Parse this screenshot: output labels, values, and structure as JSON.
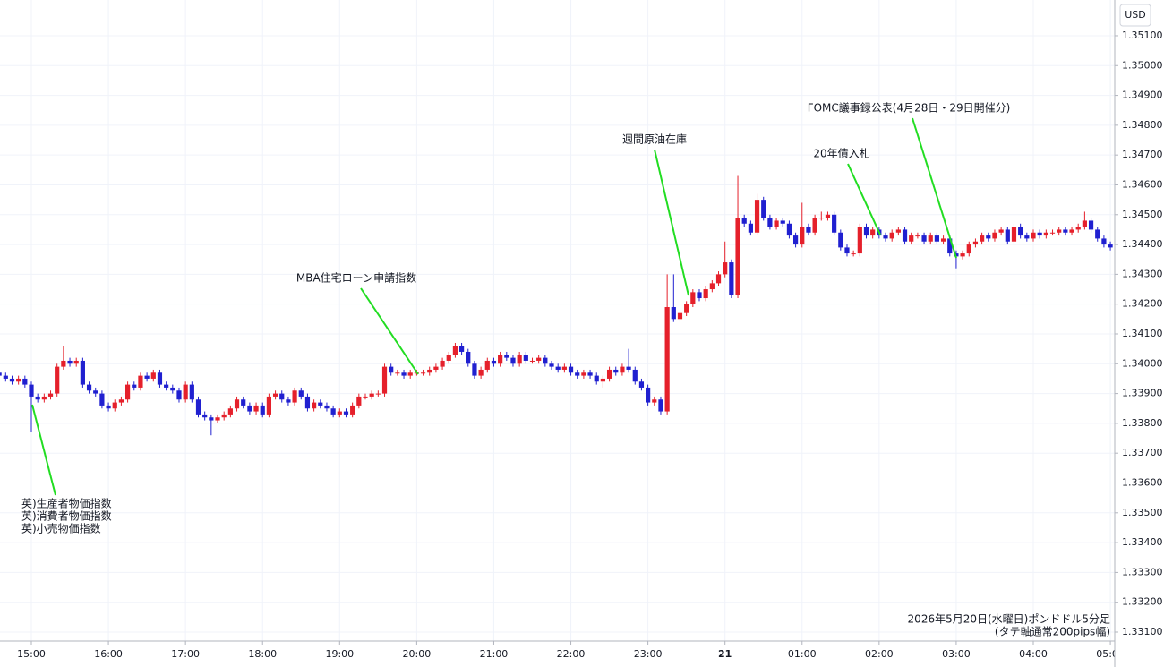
{
  "chart_data": {
    "type": "candlestick",
    "currency": "USD",
    "up_color": "#e5202b",
    "down_color": "#2020d0",
    "grid": true,
    "ylim": [
      1.3307,
      1.3522
    ],
    "yticks": [
      {
        "value": 1.331,
        "label": "1.33100"
      },
      {
        "value": 1.332,
        "label": "1.33200"
      },
      {
        "value": 1.333,
        "label": "1.33300"
      },
      {
        "value": 1.334,
        "label": "1.33400"
      },
      {
        "value": 1.335,
        "label": "1.33500"
      },
      {
        "value": 1.336,
        "label": "1.33600"
      },
      {
        "value": 1.337,
        "label": "1.33700"
      },
      {
        "value": 1.338,
        "label": "1.33800"
      },
      {
        "value": 1.339,
        "label": "1.33900"
      },
      {
        "value": 1.34,
        "label": "1.34000"
      },
      {
        "value": 1.341,
        "label": "1.34100"
      },
      {
        "value": 1.342,
        "label": "1.34200"
      },
      {
        "value": 1.343,
        "label": "1.34300"
      },
      {
        "value": 1.344,
        "label": "1.34400"
      },
      {
        "value": 1.345,
        "label": "1.34500"
      },
      {
        "value": 1.346,
        "label": "1.34600"
      },
      {
        "value": 1.347,
        "label": "1.34700"
      },
      {
        "value": 1.348,
        "label": "1.34800"
      },
      {
        "value": 1.349,
        "label": "1.34900"
      },
      {
        "value": 1.35,
        "label": "1.35000"
      },
      {
        "value": 1.351,
        "label": "1.35100"
      }
    ],
    "xticks": [
      "15:00",
      "16:00",
      "17:00",
      "18:00",
      "19:00",
      "20:00",
      "21:00",
      "22:00",
      "23:00",
      {
        "value": "00:00",
        "label": "21"
      },
      "01:00",
      "02:00",
      "03:00",
      "04:00",
      "05:00"
    ],
    "x": [
      "14:35",
      "14:40",
      "14:45",
      "14:50",
      "14:55",
      "15:00",
      "15:05",
      "15:10",
      "15:15",
      "15:20",
      "15:25",
      "15:30",
      "15:35",
      "15:40",
      "15:45",
      "15:50",
      "15:55",
      "16:00",
      "16:05",
      "16:10",
      "16:15",
      "16:20",
      "16:25",
      "16:30",
      "16:35",
      "16:40",
      "16:45",
      "16:50",
      "16:55",
      "17:00",
      "17:05",
      "17:10",
      "17:15",
      "17:20",
      "17:25",
      "17:30",
      "17:35",
      "17:40",
      "17:45",
      "17:50",
      "17:55",
      "18:00",
      "18:05",
      "18:10",
      "18:15",
      "18:20",
      "18:25",
      "18:30",
      "18:35",
      "18:40",
      "18:45",
      "18:50",
      "18:55",
      "19:00",
      "19:05",
      "19:10",
      "19:15",
      "19:20",
      "19:25",
      "19:30",
      "19:35",
      "19:40",
      "19:45",
      "19:50",
      "19:55",
      "20:00",
      "20:05",
      "20:10",
      "20:15",
      "20:20",
      "20:25",
      "20:30",
      "20:35",
      "20:40",
      "20:45",
      "20:50",
      "20:55",
      "21:00",
      "21:05",
      "21:10",
      "21:15",
      "21:20",
      "21:25",
      "21:30",
      "21:35",
      "21:40",
      "21:45",
      "21:50",
      "21:55",
      "22:00",
      "22:05",
      "22:10",
      "22:15",
      "22:20",
      "22:25",
      "22:30",
      "22:35",
      "22:40",
      "22:45",
      "22:50",
      "22:55",
      "23:00",
      "23:05",
      "23:10",
      "23:15",
      "23:20",
      "23:25",
      "23:30",
      "23:35",
      "23:40",
      "23:45",
      "23:50",
      "23:55",
      "00:00",
      "00:05",
      "00:10",
      "00:15",
      "00:20",
      "00:25",
      "00:30",
      "00:35",
      "00:40",
      "00:45",
      "00:50",
      "00:55",
      "01:00",
      "01:05",
      "01:10",
      "01:15",
      "01:20",
      "01:25",
      "01:30",
      "01:35",
      "01:40",
      "01:45",
      "01:50",
      "01:55",
      "02:00",
      "02:05",
      "02:10",
      "02:15",
      "02:20",
      "02:25",
      "02:30",
      "02:35",
      "02:40",
      "02:45",
      "02:50",
      "02:55",
      "03:00",
      "03:05",
      "03:10",
      "03:15",
      "03:20",
      "03:25",
      "03:30",
      "03:35",
      "03:40",
      "03:45",
      "03:50",
      "03:55",
      "04:00",
      "04:05",
      "04:10",
      "04:15",
      "04:20",
      "04:25",
      "04:30",
      "04:35",
      "04:40",
      "04:45",
      "04:50",
      "04:55",
      "05:00"
    ],
    "ohlc": [
      [
        1.3397,
        1.3398,
        1.3395,
        1.3396
      ],
      [
        1.3396,
        1.3397,
        1.3394,
        1.3395
      ],
      [
        1.3395,
        1.3396,
        1.3393,
        1.3394
      ],
      [
        1.3394,
        1.3396,
        1.3393,
        1.3395
      ],
      [
        1.3395,
        1.3396,
        1.3392,
        1.3393
      ],
      [
        1.3393,
        1.3394,
        1.3377,
        1.3389
      ],
      [
        1.3389,
        1.339,
        1.3387,
        1.3388
      ],
      [
        1.3388,
        1.339,
        1.3387,
        1.3389
      ],
      [
        1.3389,
        1.3391,
        1.3388,
        1.339
      ],
      [
        1.339,
        1.34,
        1.3389,
        1.3399
      ],
      [
        1.3399,
        1.3406,
        1.3398,
        1.3401
      ],
      [
        1.3401,
        1.3402,
        1.3399,
        1.34
      ],
      [
        1.34,
        1.3402,
        1.3399,
        1.3401
      ],
      [
        1.3401,
        1.3402,
        1.3392,
        1.3393
      ],
      [
        1.3393,
        1.3394,
        1.339,
        1.3391
      ],
      [
        1.3391,
        1.3392,
        1.3389,
        1.339
      ],
      [
        1.339,
        1.3391,
        1.3385,
        1.3386
      ],
      [
        1.3386,
        1.3387,
        1.3384,
        1.3385
      ],
      [
        1.3385,
        1.3388,
        1.3384,
        1.3387
      ],
      [
        1.3387,
        1.3389,
        1.3386,
        1.3388
      ],
      [
        1.3388,
        1.3394,
        1.3387,
        1.3393
      ],
      [
        1.3393,
        1.3394,
        1.3391,
        1.3392
      ],
      [
        1.3392,
        1.3397,
        1.3391,
        1.3396
      ],
      [
        1.3396,
        1.3397,
        1.3394,
        1.3395
      ],
      [
        1.3395,
        1.3398,
        1.3394,
        1.3397
      ],
      [
        1.3397,
        1.3398,
        1.3392,
        1.3393
      ],
      [
        1.3393,
        1.3394,
        1.3391,
        1.3392
      ],
      [
        1.3392,
        1.3393,
        1.339,
        1.3391
      ],
      [
        1.3391,
        1.3392,
        1.3387,
        1.3388
      ],
      [
        1.3388,
        1.3394,
        1.3387,
        1.3393
      ],
      [
        1.3393,
        1.3394,
        1.3387,
        1.3388
      ],
      [
        1.3388,
        1.3389,
        1.3382,
        1.3383
      ],
      [
        1.3383,
        1.3384,
        1.3381,
        1.3382
      ],
      [
        1.3382,
        1.3383,
        1.3376,
        1.3381
      ],
      [
        1.3381,
        1.3383,
        1.338,
        1.3382
      ],
      [
        1.3382,
        1.3384,
        1.3381,
        1.3383
      ],
      [
        1.3383,
        1.3386,
        1.3382,
        1.3385
      ],
      [
        1.3385,
        1.3389,
        1.3384,
        1.3388
      ],
      [
        1.3388,
        1.3389,
        1.3385,
        1.3386
      ],
      [
        1.3386,
        1.3387,
        1.3383,
        1.3384
      ],
      [
        1.3384,
        1.3387,
        1.3383,
        1.3386
      ],
      [
        1.3386,
        1.3387,
        1.3382,
        1.3383
      ],
      [
        1.3383,
        1.339,
        1.3382,
        1.3389
      ],
      [
        1.3389,
        1.3391,
        1.3388,
        1.339
      ],
      [
        1.339,
        1.3391,
        1.3387,
        1.3388
      ],
      [
        1.3388,
        1.3389,
        1.3386,
        1.3387
      ],
      [
        1.3387,
        1.3392,
        1.3386,
        1.3391
      ],
      [
        1.3391,
        1.3392,
        1.3388,
        1.3389
      ],
      [
        1.3389,
        1.339,
        1.3384,
        1.3385
      ],
      [
        1.3385,
        1.3388,
        1.3384,
        1.3387
      ],
      [
        1.3387,
        1.3388,
        1.3385,
        1.3386
      ],
      [
        1.3386,
        1.3387,
        1.3384,
        1.3385
      ],
      [
        1.3385,
        1.3386,
        1.3382,
        1.3383
      ],
      [
        1.3383,
        1.3385,
        1.3382,
        1.3384
      ],
      [
        1.3384,
        1.3385,
        1.3382,
        1.3383
      ],
      [
        1.3383,
        1.3387,
        1.3382,
        1.3386
      ],
      [
        1.3386,
        1.339,
        1.3385,
        1.3389
      ],
      [
        1.3389,
        1.339,
        1.3388,
        1.3389
      ],
      [
        1.3389,
        1.3391,
        1.3388,
        1.339
      ],
      [
        1.339,
        1.3391,
        1.3389,
        1.339
      ],
      [
        1.339,
        1.34,
        1.3389,
        1.3399
      ],
      [
        1.3399,
        1.34,
        1.3396,
        1.3397
      ],
      [
        1.3397,
        1.3398,
        1.3396,
        1.3397
      ],
      [
        1.3397,
        1.3398,
        1.3395,
        1.3396
      ],
      [
        1.3396,
        1.3398,
        1.3395,
        1.3397
      ],
      [
        1.3397,
        1.3398,
        1.3396,
        1.3397
      ],
      [
        1.3397,
        1.3398,
        1.3396,
        1.3397
      ],
      [
        1.3397,
        1.3399,
        1.3396,
        1.3398
      ],
      [
        1.3398,
        1.34,
        1.3397,
        1.3399
      ],
      [
        1.3399,
        1.3402,
        1.3398,
        1.3401
      ],
      [
        1.3401,
        1.3404,
        1.34,
        1.3403
      ],
      [
        1.3403,
        1.3407,
        1.3402,
        1.3406
      ],
      [
        1.3406,
        1.3407,
        1.3403,
        1.3404
      ],
      [
        1.3404,
        1.3405,
        1.3399,
        1.34
      ],
      [
        1.34,
        1.3401,
        1.3395,
        1.3396
      ],
      [
        1.3396,
        1.3399,
        1.3395,
        1.3398
      ],
      [
        1.3398,
        1.3402,
        1.3397,
        1.3401
      ],
      [
        1.3401,
        1.3402,
        1.3399,
        1.34
      ],
      [
        1.34,
        1.3404,
        1.3399,
        1.3403
      ],
      [
        1.3403,
        1.3404,
        1.3401,
        1.3402
      ],
      [
        1.3402,
        1.3403,
        1.3399,
        1.34
      ],
      [
        1.34,
        1.3404,
        1.3399,
        1.3403
      ],
      [
        1.3403,
        1.3404,
        1.34,
        1.3401
      ],
      [
        1.3401,
        1.3402,
        1.34,
        1.3401
      ],
      [
        1.3401,
        1.3403,
        1.34,
        1.3402
      ],
      [
        1.3402,
        1.3403,
        1.3399,
        1.34
      ],
      [
        1.34,
        1.3401,
        1.3398,
        1.3399
      ],
      [
        1.3399,
        1.34,
        1.3397,
        1.3398
      ],
      [
        1.3398,
        1.34,
        1.3397,
        1.3399
      ],
      [
        1.3399,
        1.34,
        1.3396,
        1.3397
      ],
      [
        1.3397,
        1.3398,
        1.3395,
        1.3396
      ],
      [
        1.3396,
        1.3398,
        1.3395,
        1.3397
      ],
      [
        1.3397,
        1.3398,
        1.3395,
        1.3396
      ],
      [
        1.3396,
        1.3397,
        1.3393,
        1.3394
      ],
      [
        1.3394,
        1.3396,
        1.3392,
        1.3395
      ],
      [
        1.3395,
        1.3399,
        1.3394,
        1.3398
      ],
      [
        1.3398,
        1.3399,
        1.3396,
        1.3397
      ],
      [
        1.3397,
        1.34,
        1.3396,
        1.3399
      ],
      [
        1.3399,
        1.3405,
        1.3397,
        1.3398
      ],
      [
        1.3398,
        1.3399,
        1.3393,
        1.3394
      ],
      [
        1.3394,
        1.3395,
        1.3391,
        1.3392
      ],
      [
        1.3392,
        1.3393,
        1.3386,
        1.3387
      ],
      [
        1.3387,
        1.3389,
        1.3386,
        1.3388
      ],
      [
        1.3388,
        1.3389,
        1.3383,
        1.3384
      ],
      [
        1.3384,
        1.343,
        1.3383,
        1.3419
      ],
      [
        1.3419,
        1.343,
        1.3414,
        1.3415
      ],
      [
        1.3415,
        1.3418,
        1.3414,
        1.3417
      ],
      [
        1.3417,
        1.3421,
        1.3416,
        1.342
      ],
      [
        1.342,
        1.3425,
        1.3419,
        1.3424
      ],
      [
        1.3424,
        1.3425,
        1.3421,
        1.3422
      ],
      [
        1.3422,
        1.3426,
        1.3421,
        1.3425
      ],
      [
        1.3425,
        1.3428,
        1.3424,
        1.3427
      ],
      [
        1.3427,
        1.3431,
        1.3426,
        1.343
      ],
      [
        1.343,
        1.3441,
        1.3429,
        1.3434
      ],
      [
        1.3434,
        1.3435,
        1.3422,
        1.3423
      ],
      [
        1.3423,
        1.3463,
        1.3422,
        1.3449
      ],
      [
        1.3449,
        1.345,
        1.3446,
        1.3447
      ],
      [
        1.3447,
        1.3448,
        1.3443,
        1.3444
      ],
      [
        1.3444,
        1.3457,
        1.3443,
        1.3455
      ],
      [
        1.3455,
        1.3456,
        1.3448,
        1.3449
      ],
      [
        1.3449,
        1.345,
        1.3445,
        1.3446
      ],
      [
        1.3446,
        1.3449,
        1.3445,
        1.3448
      ],
      [
        1.3448,
        1.3449,
        1.3446,
        1.3447
      ],
      [
        1.3447,
        1.3448,
        1.3442,
        1.3443
      ],
      [
        1.3443,
        1.3444,
        1.3439,
        1.344
      ],
      [
        1.344,
        1.3454,
        1.3439,
        1.3446
      ],
      [
        1.3446,
        1.3447,
        1.3443,
        1.3444
      ],
      [
        1.3444,
        1.345,
        1.3443,
        1.3449
      ],
      [
        1.3449,
        1.3451,
        1.3448,
        1.3449
      ],
      [
        1.3449,
        1.3451,
        1.3448,
        1.345
      ],
      [
        1.345,
        1.3451,
        1.3443,
        1.3444
      ],
      [
        1.3444,
        1.3445,
        1.3438,
        1.3439
      ],
      [
        1.3439,
        1.344,
        1.3436,
        1.3437
      ],
      [
        1.3437,
        1.3438,
        1.3436,
        1.3437
      ],
      [
        1.3437,
        1.3447,
        1.3436,
        1.3446
      ],
      [
        1.3446,
        1.3447,
        1.3442,
        1.3443
      ],
      [
        1.3443,
        1.3446,
        1.3442,
        1.3445
      ],
      [
        1.3445,
        1.3446,
        1.3442,
        1.3443
      ],
      [
        1.3443,
        1.3444,
        1.3441,
        1.3442
      ],
      [
        1.3442,
        1.3445,
        1.3441,
        1.3444
      ],
      [
        1.3444,
        1.3446,
        1.3443,
        1.3445
      ],
      [
        1.3445,
        1.3446,
        1.344,
        1.3441
      ],
      [
        1.3441,
        1.3444,
        1.344,
        1.3443
      ],
      [
        1.3443,
        1.3444,
        1.3442,
        1.3443
      ],
      [
        1.3443,
        1.3444,
        1.344,
        1.3441
      ],
      [
        1.3441,
        1.3444,
        1.344,
        1.3443
      ],
      [
        1.3443,
        1.3444,
        1.344,
        1.3441
      ],
      [
        1.3441,
        1.3443,
        1.344,
        1.3442
      ],
      [
        1.3442,
        1.3443,
        1.3436,
        1.3437
      ],
      [
        1.3437,
        1.3438,
        1.3432,
        1.3436
      ],
      [
        1.3436,
        1.3438,
        1.3435,
        1.3437
      ],
      [
        1.3437,
        1.3441,
        1.3436,
        1.344
      ],
      [
        1.344,
        1.3442,
        1.3439,
        1.3441
      ],
      [
        1.3441,
        1.3444,
        1.344,
        1.3443
      ],
      [
        1.3443,
        1.3444,
        1.3441,
        1.3442
      ],
      [
        1.3442,
        1.3445,
        1.3441,
        1.3444
      ],
      [
        1.3444,
        1.3446,
        1.3443,
        1.3445
      ],
      [
        1.3445,
        1.3446,
        1.344,
        1.3441
      ],
      [
        1.3441,
        1.3447,
        1.344,
        1.3446
      ],
      [
        1.3446,
        1.3447,
        1.3442,
        1.3443
      ],
      [
        1.3443,
        1.3444,
        1.3441,
        1.3442
      ],
      [
        1.3442,
        1.3445,
        1.3441,
        1.3444
      ],
      [
        1.3444,
        1.3445,
        1.3442,
        1.3443
      ],
      [
        1.3443,
        1.3445,
        1.3442,
        1.3444
      ],
      [
        1.3444,
        1.3445,
        1.3443,
        1.3444
      ],
      [
        1.3444,
        1.3446,
        1.3443,
        1.3445
      ],
      [
        1.3445,
        1.3446,
        1.3443,
        1.3444
      ],
      [
        1.3444,
        1.3446,
        1.3443,
        1.3445
      ],
      [
        1.3445,
        1.3447,
        1.3444,
        1.3446
      ],
      [
        1.3446,
        1.3451,
        1.3445,
        1.3448
      ],
      [
        1.3448,
        1.3449,
        1.3444,
        1.3445
      ],
      [
        1.3445,
        1.3446,
        1.3441,
        1.3442
      ],
      [
        1.3442,
        1.3443,
        1.3439,
        1.344
      ],
      [
        1.344,
        1.3441,
        1.3438,
        1.3439
      ]
    ],
    "annotations": [
      {
        "lines": [
          "英)生産者物価指数",
          "英)消費者物価指数",
          "英)小売物価指数"
        ]
      },
      {
        "lines": [
          "MBA住宅ローン申請指数"
        ]
      },
      {
        "lines": [
          "週間原油在庫"
        ]
      },
      {
        "lines": [
          "20年債入札"
        ]
      },
      {
        "lines": [
          "FOMC議事録公表(4月28日・29日開催分)"
        ]
      }
    ],
    "notes": [
      "2026年5月20日(水曜日)ポンドドル5分足",
      "(タテ軸通常200pips幅)"
    ]
  }
}
